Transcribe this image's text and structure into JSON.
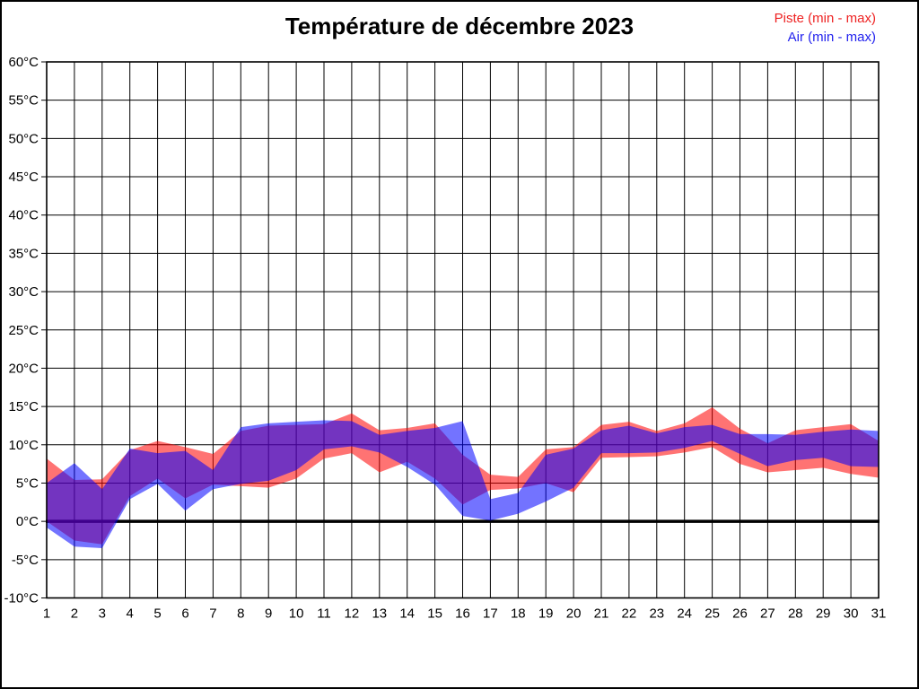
{
  "chart_data": {
    "type": "area",
    "title": "Température de décembre 2023",
    "ylim": [
      -10,
      60
    ],
    "xlim": [
      1,
      31
    ],
    "grid": true,
    "zero_line": 0,
    "y_unit": "°C",
    "y_ticks": [
      60,
      55,
      50,
      45,
      40,
      35,
      30,
      25,
      20,
      15,
      10,
      5,
      0,
      -5,
      -10
    ],
    "y_ticklabels": [
      "60°C",
      "55°C",
      "50°C",
      "45°C",
      "40°C",
      "35°C",
      "30°C",
      "25°C",
      "20°C",
      "15°C",
      "10°C",
      "5°C",
      "0°C",
      "-5°C",
      "-10°C"
    ],
    "x_ticklabels": [
      "1",
      "2",
      "3",
      "4",
      "5",
      "6",
      "7",
      "8",
      "9",
      "10",
      "11",
      "12",
      "13",
      "14",
      "15",
      "16",
      "17",
      "18",
      "19",
      "20",
      "21",
      "22",
      "23",
      "24",
      "25",
      "26",
      "27",
      "28",
      "29",
      "30",
      "31"
    ],
    "legend_position": "top-right",
    "series": [
      {
        "name": "Piste (min - max)",
        "kind": "min-max band",
        "fill": "rgba(255,0,0,0.55)",
        "legend_color": "#ee2222",
        "min": [
          0,
          -2.5,
          -3,
          3.3,
          5.6,
          3,
          4.8,
          4.6,
          4.4,
          5.6,
          8.2,
          8.9,
          6.4,
          7.8,
          5.6,
          2.2,
          4.1,
          4.3,
          5,
          3.8,
          8.3,
          8.4,
          8.5,
          9,
          9.7,
          7.5,
          6.4,
          6.7,
          7,
          6.2,
          5.7
        ],
        "max": [
          8.2,
          5.4,
          5.5,
          9.3,
          10.5,
          9.7,
          8.8,
          11.8,
          12.5,
          12.6,
          12.7,
          14.1,
          11.9,
          12.2,
          12.8,
          8.7,
          6.1,
          5.8,
          9.4,
          9.7,
          12.6,
          13,
          11.8,
          12.8,
          14.9,
          12.1,
          10.2,
          11.9,
          12.3,
          12.7,
          10.5
        ]
      },
      {
        "name": "Air (min - max)",
        "kind": "min-max band",
        "fill": "rgba(0,0,255,0.55)",
        "legend_color": "#2222ee",
        "min": [
          -0.8,
          -3.3,
          -3.5,
          2.9,
          4.9,
          1.4,
          4.2,
          4.9,
          5.3,
          6.7,
          9.4,
          9.8,
          9,
          7.1,
          4.8,
          0.7,
          0.1,
          1,
          2.6,
          4.4,
          8.9,
          8.9,
          9,
          9.6,
          10.5,
          8.8,
          7.2,
          8,
          8.3,
          7.2,
          7.1
        ],
        "max": [
          5,
          7.6,
          4.2,
          9.5,
          8.9,
          9.2,
          6.7,
          12.3,
          12.8,
          13,
          13.2,
          13.1,
          11.3,
          11.8,
          12.2,
          13.1,
          2.9,
          3.7,
          8.7,
          9.5,
          11.9,
          12.5,
          11.5,
          12.3,
          12.6,
          11.4,
          11.4,
          11.3,
          11.7,
          12,
          11.8
        ]
      }
    ]
  }
}
